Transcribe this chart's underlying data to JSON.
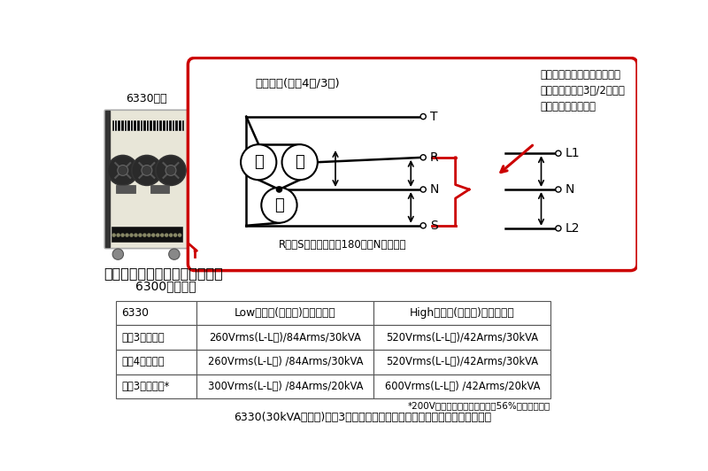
{
  "bg_color": "#ffffff",
  "device_label": "6330背面",
  "series_label1": "大容量プログラマブル交流電源",
  "series_label2": "6300シリーズ",
  "standard_output_label": "標準出力(三相4線/3線)",
  "option_label": "オプション実装により、標準\n出力に加え単相3線/2線出力\nモードの選択が可能",
  "phase_note": "R相とS相の位相差を180度、N相を中点",
  "table_header": [
    "6330",
    "Lowレンジ(線電圧)　最大出力",
    "Highレンジ(線電圧)　最大出力"
  ],
  "table_rows": [
    [
      "三相3線出力時",
      "260Vrms(L-L間)/84Arms/30kVA",
      "520Vrms(L-L間)/42Arms/30kVA"
    ],
    [
      "三相4線出力時",
      "260Vrms(L-L間) /84Arms/30kVA",
      "520Vrms(L-L間)/42Arms/30kVA"
    ],
    [
      "単相3線出力時*",
      "300Vrms(L-L間) /84Arms/20kVA",
      "600Vrms(L-L間) /42Arms/20kVA"
    ]
  ],
  "table_note": "*200V設定時は三相定格容量の56%出力可能です",
  "caption": "6330(30kVAモデル)単相3線出力オプション追加時の出力電圧と容量の関係",
  "red_color": "#cc0000",
  "black_color": "#000000"
}
